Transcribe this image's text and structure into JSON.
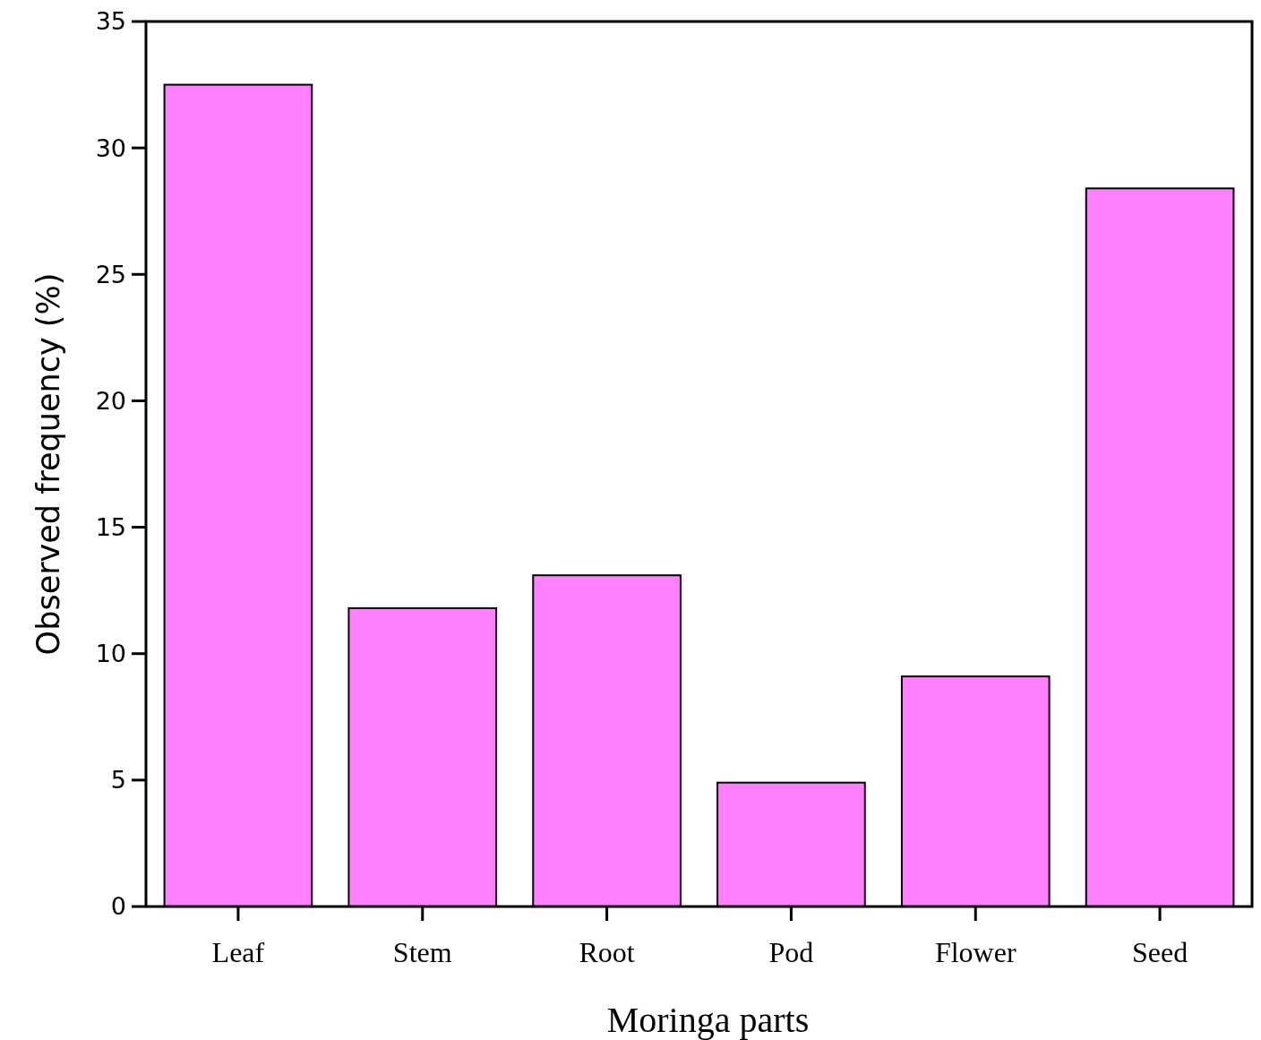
{
  "chart_data": {
    "type": "bar",
    "xlabel": "Moringa parts",
    "ylabel": "Observed frequency (%)",
    "categories": [
      "Leaf",
      "Stem",
      "Root",
      "Pod",
      "Flower",
      "Seed"
    ],
    "values": [
      32.5,
      11.8,
      13.1,
      4.9,
      9.1,
      28.4
    ],
    "color": "#ff80ff",
    "ylim": [
      0,
      35
    ],
    "yticks": [
      0,
      5,
      10,
      15,
      20,
      25,
      30,
      35
    ],
    "grid": false
  }
}
